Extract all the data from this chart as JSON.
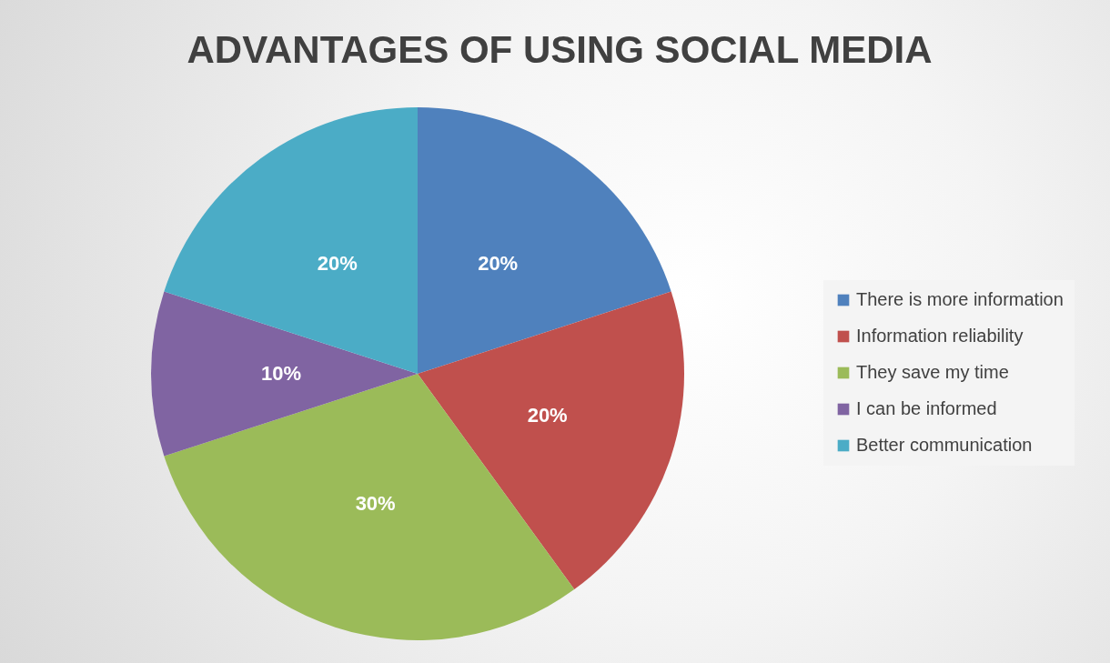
{
  "chart_data": {
    "type": "pie",
    "title": "ADVANTAGES OF USING SOCIAL MEDIA",
    "categories": [
      "There is more information",
      "Information reliability",
      "They save my time",
      "I can be informed",
      "Better communication"
    ],
    "values": [
      20,
      20,
      30,
      10,
      20
    ],
    "colors": [
      "#4f81bd",
      "#c0504d",
      "#9bbb59",
      "#8064a2",
      "#4bacc6"
    ],
    "value_labels": [
      "20%",
      "20%",
      "30%",
      "10%",
      "20%"
    ],
    "legend": "right"
  }
}
